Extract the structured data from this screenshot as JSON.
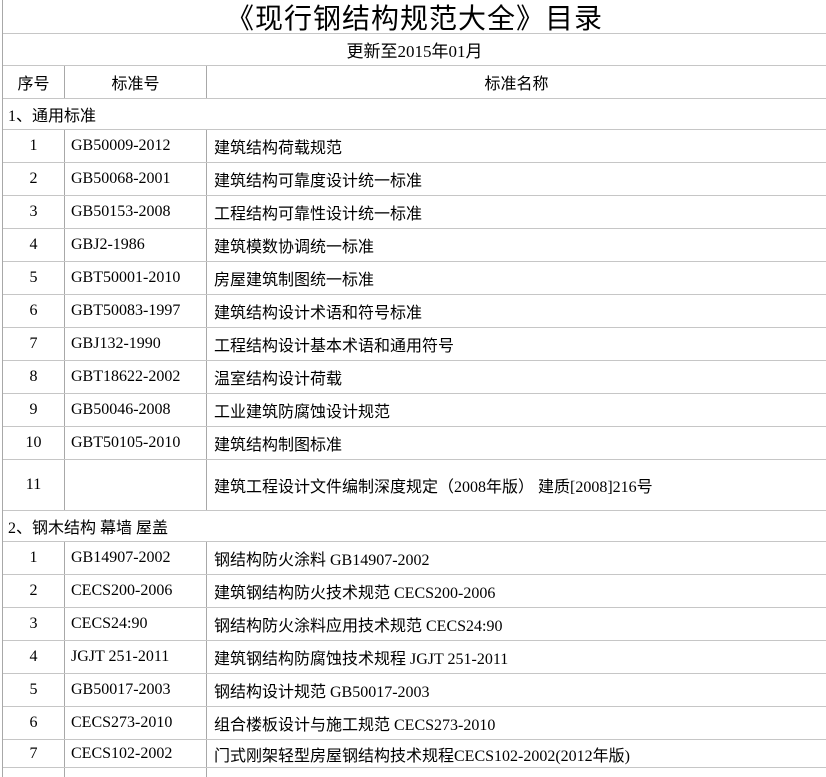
{
  "page": {
    "title": "《现行钢结构规范大全》目录",
    "subtitle": "更新至2015年01月"
  },
  "table": {
    "headers": [
      "序号",
      "标准号",
      "标准名称"
    ],
    "sections": [
      {
        "label": "1、通用标准",
        "rows": [
          {
            "no": "1",
            "code": "GB50009-2012",
            "name": "建筑结构荷载规范"
          },
          {
            "no": "2",
            "code": "GB50068-2001",
            "name": "建筑结构可靠度设计统一标准"
          },
          {
            "no": "3",
            "code": "GB50153-2008",
            "name": "工程结构可靠性设计统一标准"
          },
          {
            "no": "4",
            "code": "GBJ2-1986",
            "name": "建筑模数协调统一标准"
          },
          {
            "no": "5",
            "code": "GBT50001-2010",
            "name": "房屋建筑制图统一标准"
          },
          {
            "no": "6",
            "code": "GBT50083-1997",
            "name": "建筑结构设计术语和符号标准"
          },
          {
            "no": "7",
            "code": "GBJ132-1990",
            "name": "工程结构设计基本术语和通用符号"
          },
          {
            "no": "8",
            "code": "GBT18622-2002",
            "name": "温室结构设计荷载"
          },
          {
            "no": "9",
            "code": "GB50046-2008",
            "name": "工业建筑防腐蚀设计规范"
          },
          {
            "no": "10",
            "code": "GBT50105-2010",
            "name": "建筑结构制图标准"
          },
          {
            "no": "11",
            "code": "",
            "name": "建筑工程设计文件编制深度规定（2008年版） 建质[2008]216号"
          }
        ]
      },
      {
        "label": "2、钢木结构 幕墙  屋盖",
        "rows": [
          {
            "no": "1",
            "code": "GB14907-2002",
            "name": "钢结构防火涂料 GB14907-2002"
          },
          {
            "no": "2",
            "code": "CECS200-2006",
            "name": "建筑钢结构防火技术规范 CECS200-2006"
          },
          {
            "no": "3",
            "code": "CECS24:90",
            "name": "钢结构防火涂料应用技术规范 CECS24:90"
          },
          {
            "no": "4",
            "code": "JGJT 251-2011",
            "name": "建筑钢结构防腐蚀技术规程 JGJT 251-2011"
          },
          {
            "no": "5",
            "code": "GB50017-2003",
            "name": "钢结构设计规范 GB50017-2003"
          },
          {
            "no": "6",
            "code": "CECS273-2010",
            "name": "组合楼板设计与施工规范 CECS273-2010"
          },
          {
            "no": "7",
            "code": "CECS102-2002",
            "name": "门式刚架轻型房屋钢结构技术规程CECS102-2002(2012年版)"
          }
        ]
      }
    ]
  },
  "colors": {
    "background": "#ffffff",
    "text": "#000000",
    "grid_horizontal": "#c6c6c6",
    "grid_vertical": "#a8a8a8"
  }
}
